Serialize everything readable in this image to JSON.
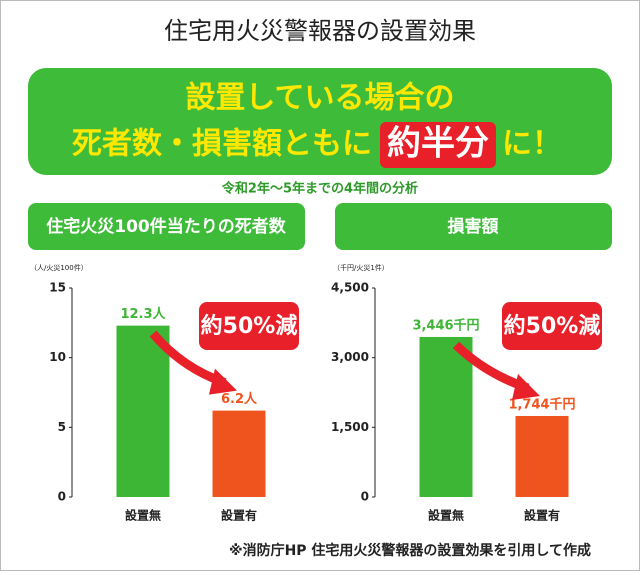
{
  "header": {
    "title": "住宅用火災警報器の設置効果",
    "banner_line1": "設置している場合の",
    "banner_line2": "死者数・損害額ともに",
    "banner_emphasis": "約半分",
    "banner_end": "に！",
    "period": "令和2年～5年までの4年間の分析"
  },
  "chart_data": [
    {
      "type": "bar",
      "title": "住宅火災100件当たりの死者数",
      "y_label": "（人/火災100件）",
      "categories": [
        "設置無",
        "設置有"
      ],
      "values": [
        12.3,
        6.2
      ],
      "value_labels": [
        "12.3人",
        "6.2人"
      ],
      "colors": [
        "#3db535",
        "#f0541e"
      ],
      "ylim": [
        0,
        15
      ],
      "yticks": [
        0,
        5,
        10,
        15
      ],
      "annotation": "約50%減"
    },
    {
      "type": "bar",
      "title": "損害額",
      "y_label": "（千円/火災1件）",
      "categories": [
        "設置無",
        "設置有"
      ],
      "values": [
        3446,
        1744
      ],
      "value_labels": [
        "3,446千円",
        "1,744千円"
      ],
      "colors": [
        "#3db535",
        "#f0541e"
      ],
      "ylim": [
        0,
        4500
      ],
      "yticks": [
        0,
        {
          "value": 1500,
          "label": "1,500"
        },
        {
          "value": 3000,
          "label": "3,000"
        },
        {
          "value": 4500,
          "label": "4,500"
        }
      ],
      "annotation": "約50%減"
    }
  ],
  "footer": "※消防庁HP 住宅用火災警報器の設置効果を引用して作成"
}
